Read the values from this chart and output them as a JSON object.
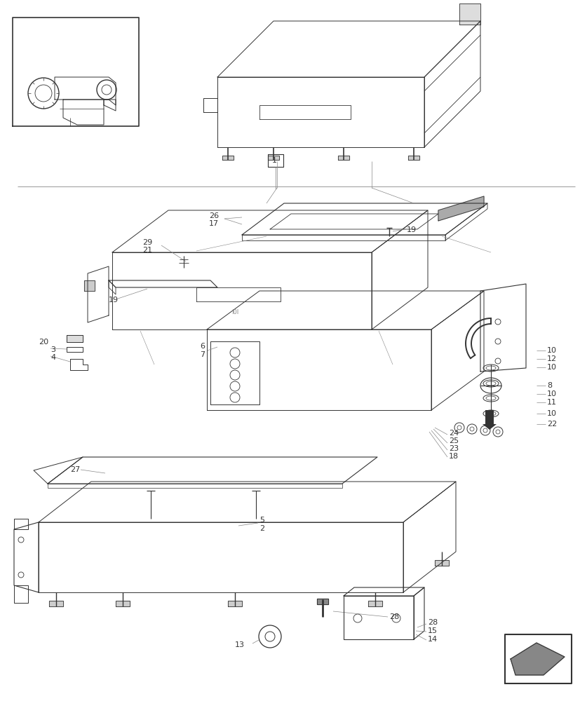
{
  "bg_color": "#ffffff",
  "lc": "#333333",
  "lc_light": "#888888",
  "lw": 0.7,
  "fig_width": 8.28,
  "fig_height": 10.0,
  "dpi": 100
}
